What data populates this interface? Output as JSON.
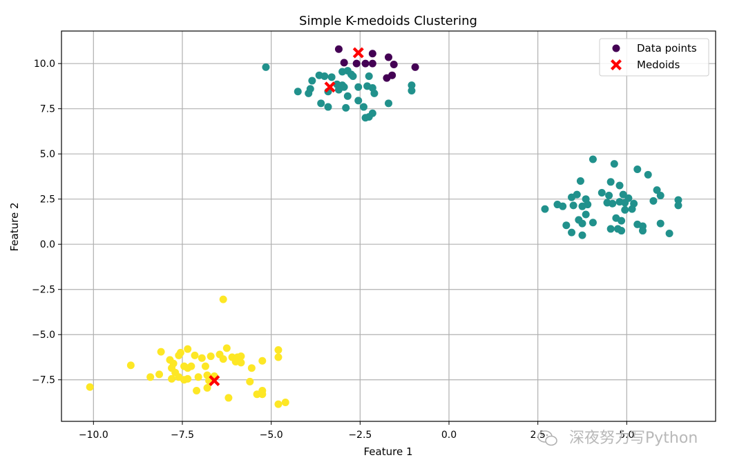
{
  "chart_data": {
    "type": "scatter",
    "title": "Simple K-medoids Clustering",
    "xlabel": "Feature 1",
    "ylabel": "Feature 2",
    "xlim": [
      -10.9,
      7.5
    ],
    "ylim": [
      -9.8,
      11.8
    ],
    "xticks": [
      -10.0,
      -7.5,
      -5.0,
      -2.5,
      0.0,
      2.5,
      5.0
    ],
    "xtick_labels": [
      "−10.0",
      "−7.5",
      "−5.0",
      "−2.5",
      "0.0",
      "2.5",
      "5.0"
    ],
    "yticks": [
      -7.5,
      -5.0,
      -2.5,
      0.0,
      2.5,
      5.0,
      7.5,
      10.0
    ],
    "ytick_labels": [
      "−7.5",
      "−5.0",
      "−2.5",
      "0.0",
      "2.5",
      "5.0",
      "7.5",
      "10.0"
    ],
    "grid": true,
    "legend": {
      "placement": "top-right",
      "entries": [
        {
          "label": "Data points",
          "marker": "circle",
          "color": "#440154"
        },
        {
          "label": "Medoids",
          "marker": "x",
          "color": "#ff0000"
        }
      ]
    },
    "colors": {
      "cluster_0": "#440154",
      "cluster_1": "#21918c",
      "cluster_2": "#fde725",
      "medoid": "#ff0000"
    },
    "series": [
      {
        "cluster": 0,
        "color": "#440154",
        "points": [
          [
            -3.1,
            10.8
          ],
          [
            -2.95,
            10.05
          ],
          [
            -2.6,
            10.0
          ],
          [
            -2.35,
            10.0
          ],
          [
            -2.15,
            10.0
          ],
          [
            -2.15,
            10.55
          ],
          [
            -1.7,
            10.35
          ],
          [
            -1.55,
            9.95
          ],
          [
            -1.6,
            9.35
          ],
          [
            -1.75,
            9.2
          ],
          [
            -0.95,
            9.8
          ]
        ]
      },
      {
        "cluster": 1,
        "color": "#21918c",
        "points": [
          [
            -5.15,
            9.8
          ],
          [
            -3.65,
            9.35
          ],
          [
            -3.5,
            9.3
          ],
          [
            -3.85,
            9.05
          ],
          [
            -3.3,
            9.25
          ],
          [
            -3.0,
            9.55
          ],
          [
            -2.85,
            9.6
          ],
          [
            -2.75,
            9.4
          ],
          [
            -2.7,
            9.3
          ],
          [
            -3.15,
            8.85
          ],
          [
            -3.1,
            8.55
          ],
          [
            -3.0,
            8.8
          ],
          [
            -2.95,
            8.7
          ],
          [
            -2.55,
            8.7
          ],
          [
            -2.3,
            8.75
          ],
          [
            -2.25,
            9.3
          ],
          [
            -2.15,
            8.65
          ],
          [
            -2.1,
            8.35
          ],
          [
            -4.25,
            8.45
          ],
          [
            -3.95,
            8.35
          ],
          [
            -3.9,
            8.6
          ],
          [
            -3.4,
            8.45
          ],
          [
            -2.85,
            8.2
          ],
          [
            -2.55,
            7.95
          ],
          [
            -2.4,
            7.6
          ],
          [
            -3.6,
            7.8
          ],
          [
            -3.4,
            7.6
          ],
          [
            -2.9,
            7.55
          ],
          [
            -2.35,
            7.0
          ],
          [
            -2.25,
            7.05
          ],
          [
            -2.15,
            7.25
          ],
          [
            -1.7,
            7.8
          ],
          [
            -1.05,
            8.8
          ],
          [
            -1.05,
            8.5
          ],
          [
            4.05,
            4.7
          ],
          [
            4.65,
            4.45
          ],
          [
            5.3,
            4.15
          ],
          [
            5.6,
            3.85
          ],
          [
            3.7,
            3.5
          ],
          [
            4.55,
            3.45
          ],
          [
            4.8,
            3.25
          ],
          [
            5.85,
            3.0
          ],
          [
            4.3,
            2.85
          ],
          [
            4.5,
            2.7
          ],
          [
            3.6,
            2.75
          ],
          [
            3.45,
            2.6
          ],
          [
            3.85,
            2.5
          ],
          [
            4.9,
            2.75
          ],
          [
            5.05,
            2.55
          ],
          [
            5.95,
            2.7
          ],
          [
            5.75,
            2.4
          ],
          [
            4.8,
            2.35
          ],
          [
            4.95,
            2.3
          ],
          [
            5.2,
            2.25
          ],
          [
            4.45,
            2.3
          ],
          [
            4.6,
            2.25
          ],
          [
            3.5,
            2.15
          ],
          [
            3.75,
            2.1
          ],
          [
            3.9,
            2.2
          ],
          [
            3.2,
            2.1
          ],
          [
            3.05,
            2.2
          ],
          [
            2.7,
            1.95
          ],
          [
            4.95,
            1.9
          ],
          [
            5.15,
            1.95
          ],
          [
            6.45,
            2.45
          ],
          [
            6.45,
            2.15
          ],
          [
            4.7,
            1.45
          ],
          [
            4.85,
            1.3
          ],
          [
            3.65,
            1.35
          ],
          [
            3.75,
            1.15
          ],
          [
            3.85,
            1.65
          ],
          [
            4.05,
            1.2
          ],
          [
            4.55,
            0.85
          ],
          [
            4.75,
            0.85
          ],
          [
            4.85,
            0.75
          ],
          [
            5.3,
            1.1
          ],
          [
            5.45,
            1.0
          ],
          [
            5.45,
            0.75
          ],
          [
            5.95,
            1.15
          ],
          [
            3.3,
            1.05
          ],
          [
            3.45,
            0.65
          ],
          [
            3.75,
            0.5
          ],
          [
            6.2,
            0.6
          ]
        ]
      },
      {
        "cluster": 2,
        "color": "#fde725",
        "points": [
          [
            -6.35,
            -3.05
          ],
          [
            -8.1,
            -5.95
          ],
          [
            -7.85,
            -6.4
          ],
          [
            -7.6,
            -6.15
          ],
          [
            -7.55,
            -6.0
          ],
          [
            -7.35,
            -5.8
          ],
          [
            -7.15,
            -6.15
          ],
          [
            -6.95,
            -6.3
          ],
          [
            -6.7,
            -6.2
          ],
          [
            -6.45,
            -6.1
          ],
          [
            -6.35,
            -6.35
          ],
          [
            -6.25,
            -5.75
          ],
          [
            -6.1,
            -6.25
          ],
          [
            -5.95,
            -6.25
          ],
          [
            -5.85,
            -6.2
          ],
          [
            -6.0,
            -6.5
          ],
          [
            -5.85,
            -6.55
          ],
          [
            -5.55,
            -6.85
          ],
          [
            -5.25,
            -6.45
          ],
          [
            -4.8,
            -5.85
          ],
          [
            -4.8,
            -6.25
          ],
          [
            -8.95,
            -6.7
          ],
          [
            -7.8,
            -6.85
          ],
          [
            -7.75,
            -6.6
          ],
          [
            -7.45,
            -6.75
          ],
          [
            -7.35,
            -6.85
          ],
          [
            -7.25,
            -6.75
          ],
          [
            -7.7,
            -7.1
          ],
          [
            -7.8,
            -7.45
          ],
          [
            -7.6,
            -7.35
          ],
          [
            -7.45,
            -7.5
          ],
          [
            -7.35,
            -7.45
          ],
          [
            -7.05,
            -7.35
          ],
          [
            -6.85,
            -6.75
          ],
          [
            -6.8,
            -7.25
          ],
          [
            -6.75,
            -7.55
          ],
          [
            -6.6,
            -7.3
          ],
          [
            -8.4,
            -7.35
          ],
          [
            -8.15,
            -7.2
          ],
          [
            -7.1,
            -8.1
          ],
          [
            -6.8,
            -7.95
          ],
          [
            -6.2,
            -8.5
          ],
          [
            -5.6,
            -7.6
          ],
          [
            -5.4,
            -8.3
          ],
          [
            -5.25,
            -8.1
          ],
          [
            -5.25,
            -8.3
          ],
          [
            -4.8,
            -8.85
          ],
          [
            -4.6,
            -8.75
          ],
          [
            -10.1,
            -7.9
          ]
        ]
      }
    ],
    "medoids": [
      [
        -2.55,
        10.6
      ],
      [
        -3.35,
        8.7
      ],
      [
        -6.6,
        -7.55
      ]
    ]
  },
  "watermark": {
    "text": "深夜努力写Python",
    "icon": "wechat-icon"
  }
}
